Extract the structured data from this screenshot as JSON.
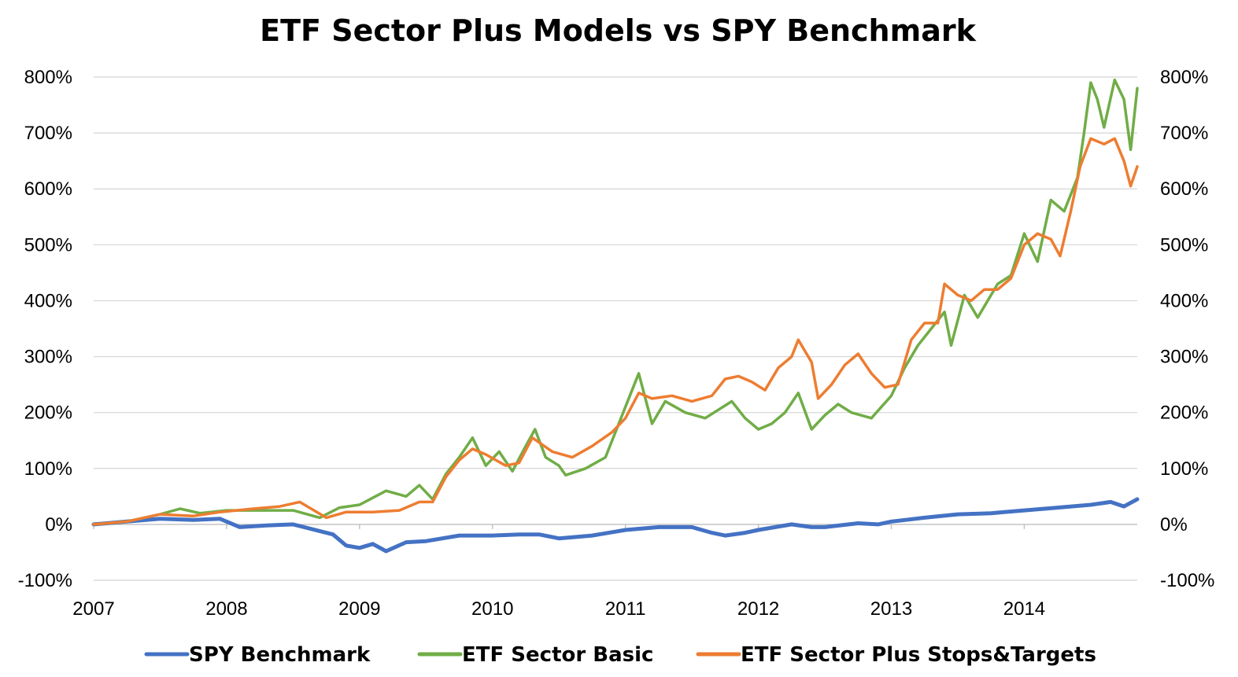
{
  "chart_data": {
    "type": "line",
    "title": "ETF Sector Plus Models vs SPY Benchmark",
    "xlabel": "",
    "ylabel": "",
    "xlim": [
      2007,
      2014.85
    ],
    "ylim": [
      -100,
      800
    ],
    "x_ticks": [
      "2007",
      "2008",
      "2009",
      "2010",
      "2011",
      "2012",
      "2013",
      "2014"
    ],
    "y_ticks_left": [
      "-100%",
      "0%",
      "100%",
      "200%",
      "300%",
      "400%",
      "500%",
      "600%",
      "700%",
      "800%"
    ],
    "y_ticks_right": [
      "-100%",
      "0%",
      "100%",
      "200%",
      "300%",
      "400%",
      "500%",
      "600%",
      "700%",
      "800%"
    ],
    "grid": true,
    "legend_position": "bottom",
    "series": [
      {
        "name": "SPY Benchmark",
        "color": "#4472c4",
        "points": [
          [
            2007.0,
            0
          ],
          [
            2007.25,
            5
          ],
          [
            2007.5,
            10
          ],
          [
            2007.75,
            8
          ],
          [
            2007.95,
            10
          ],
          [
            2008.1,
            -5
          ],
          [
            2008.3,
            -2
          ],
          [
            2008.5,
            0
          ],
          [
            2008.7,
            -12
          ],
          [
            2008.8,
            -18
          ],
          [
            2008.9,
            -38
          ],
          [
            2009.0,
            -42
          ],
          [
            2009.1,
            -35
          ],
          [
            2009.2,
            -48
          ],
          [
            2009.35,
            -32
          ],
          [
            2009.5,
            -30
          ],
          [
            2009.75,
            -20
          ],
          [
            2010.0,
            -20
          ],
          [
            2010.2,
            -18
          ],
          [
            2010.35,
            -18
          ],
          [
            2010.5,
            -25
          ],
          [
            2010.75,
            -20
          ],
          [
            2011.0,
            -10
          ],
          [
            2011.25,
            -5
          ],
          [
            2011.5,
            -5
          ],
          [
            2011.65,
            -15
          ],
          [
            2011.75,
            -20
          ],
          [
            2011.9,
            -15
          ],
          [
            2012.0,
            -10
          ],
          [
            2012.25,
            0
          ],
          [
            2012.4,
            -5
          ],
          [
            2012.5,
            -5
          ],
          [
            2012.75,
            2
          ],
          [
            2012.9,
            0
          ],
          [
            2013.0,
            5
          ],
          [
            2013.25,
            12
          ],
          [
            2013.5,
            18
          ],
          [
            2013.75,
            20
          ],
          [
            2014.0,
            25
          ],
          [
            2014.25,
            30
          ],
          [
            2014.5,
            35
          ],
          [
            2014.65,
            40
          ],
          [
            2014.75,
            32
          ],
          [
            2014.85,
            45
          ]
        ]
      },
      {
        "name": "ETF Sector Basic",
        "color": "#70ad47",
        "points": [
          [
            2007.0,
            0
          ],
          [
            2007.25,
            5
          ],
          [
            2007.5,
            18
          ],
          [
            2007.65,
            28
          ],
          [
            2007.8,
            20
          ],
          [
            2008.0,
            25
          ],
          [
            2008.3,
            25
          ],
          [
            2008.5,
            25
          ],
          [
            2008.7,
            12
          ],
          [
            2008.85,
            30
          ],
          [
            2009.0,
            35
          ],
          [
            2009.2,
            60
          ],
          [
            2009.35,
            50
          ],
          [
            2009.45,
            70
          ],
          [
            2009.55,
            45
          ],
          [
            2009.65,
            90
          ],
          [
            2009.75,
            120
          ],
          [
            2009.85,
            155
          ],
          [
            2009.95,
            105
          ],
          [
            2010.05,
            130
          ],
          [
            2010.15,
            95
          ],
          [
            2010.25,
            140
          ],
          [
            2010.32,
            170
          ],
          [
            2010.4,
            120
          ],
          [
            2010.5,
            105
          ],
          [
            2010.55,
            88
          ],
          [
            2010.7,
            100
          ],
          [
            2010.85,
            120
          ],
          [
            2010.95,
            180
          ],
          [
            2011.05,
            240
          ],
          [
            2011.1,
            270
          ],
          [
            2011.2,
            180
          ],
          [
            2011.3,
            220
          ],
          [
            2011.45,
            200
          ],
          [
            2011.6,
            190
          ],
          [
            2011.8,
            220
          ],
          [
            2011.9,
            190
          ],
          [
            2012.0,
            170
          ],
          [
            2012.1,
            180
          ],
          [
            2012.2,
            200
          ],
          [
            2012.3,
            235
          ],
          [
            2012.4,
            170
          ],
          [
            2012.5,
            195
          ],
          [
            2012.6,
            215
          ],
          [
            2012.7,
            200
          ],
          [
            2012.85,
            190
          ],
          [
            2013.0,
            230
          ],
          [
            2013.1,
            280
          ],
          [
            2013.2,
            320
          ],
          [
            2013.3,
            350
          ],
          [
            2013.4,
            380
          ],
          [
            2013.45,
            320
          ],
          [
            2013.55,
            410
          ],
          [
            2013.65,
            370
          ],
          [
            2013.8,
            430
          ],
          [
            2013.9,
            445
          ],
          [
            2014.0,
            520
          ],
          [
            2014.1,
            470
          ],
          [
            2014.2,
            580
          ],
          [
            2014.3,
            560
          ],
          [
            2014.4,
            620
          ],
          [
            2014.45,
            700
          ],
          [
            2014.5,
            790
          ],
          [
            2014.55,
            760
          ],
          [
            2014.6,
            710
          ],
          [
            2014.68,
            795
          ],
          [
            2014.75,
            760
          ],
          [
            2014.8,
            670
          ],
          [
            2014.85,
            780
          ]
        ]
      },
      {
        "name": "ETF Sector Plus Stops&Targets",
        "color": "#ed7d31",
        "points": [
          [
            2007.0,
            0
          ],
          [
            2007.25,
            5
          ],
          [
            2007.5,
            18
          ],
          [
            2007.75,
            15
          ],
          [
            2007.95,
            22
          ],
          [
            2008.2,
            28
          ],
          [
            2008.4,
            32
          ],
          [
            2008.55,
            40
          ],
          [
            2008.75,
            12
          ],
          [
            2008.9,
            22
          ],
          [
            2009.1,
            22
          ],
          [
            2009.3,
            25
          ],
          [
            2009.45,
            40
          ],
          [
            2009.55,
            40
          ],
          [
            2009.65,
            85
          ],
          [
            2009.75,
            115
          ],
          [
            2009.85,
            135
          ],
          [
            2009.95,
            125
          ],
          [
            2010.1,
            105
          ],
          [
            2010.2,
            110
          ],
          [
            2010.3,
            155
          ],
          [
            2010.45,
            130
          ],
          [
            2010.6,
            120
          ],
          [
            2010.75,
            140
          ],
          [
            2010.9,
            165
          ],
          [
            2011.0,
            190
          ],
          [
            2011.1,
            235
          ],
          [
            2011.2,
            225
          ],
          [
            2011.35,
            230
          ],
          [
            2011.5,
            220
          ],
          [
            2011.65,
            230
          ],
          [
            2011.75,
            260
          ],
          [
            2011.85,
            265
          ],
          [
            2011.95,
            255
          ],
          [
            2012.05,
            240
          ],
          [
            2012.15,
            280
          ],
          [
            2012.25,
            300
          ],
          [
            2012.3,
            330
          ],
          [
            2012.4,
            290
          ],
          [
            2012.45,
            225
          ],
          [
            2012.55,
            250
          ],
          [
            2012.65,
            285
          ],
          [
            2012.75,
            305
          ],
          [
            2012.85,
            270
          ],
          [
            2012.95,
            245
          ],
          [
            2013.05,
            250
          ],
          [
            2013.15,
            330
          ],
          [
            2013.25,
            360
          ],
          [
            2013.35,
            360
          ],
          [
            2013.4,
            430
          ],
          [
            2013.5,
            410
          ],
          [
            2013.6,
            400
          ],
          [
            2013.7,
            420
          ],
          [
            2013.8,
            420
          ],
          [
            2013.9,
            440
          ],
          [
            2014.0,
            500
          ],
          [
            2014.1,
            520
          ],
          [
            2014.2,
            510
          ],
          [
            2014.27,
            480
          ],
          [
            2014.35,
            560
          ],
          [
            2014.42,
            640
          ],
          [
            2014.5,
            690
          ],
          [
            2014.6,
            680
          ],
          [
            2014.68,
            690
          ],
          [
            2014.75,
            650
          ],
          [
            2014.8,
            605
          ],
          [
            2014.85,
            640
          ]
        ]
      }
    ]
  }
}
